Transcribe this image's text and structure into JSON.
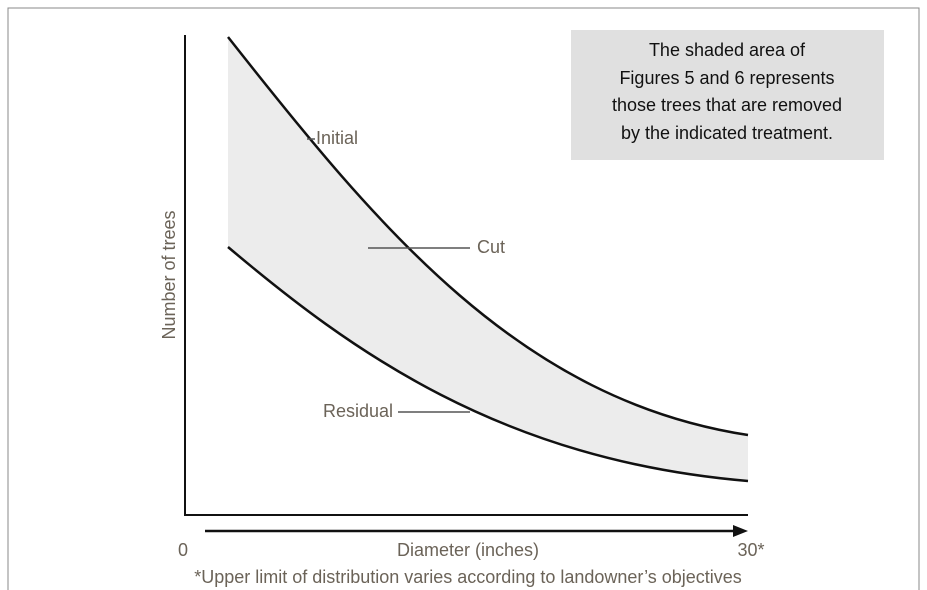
{
  "y_axis_label": "Number of trees",
  "x_axis": {
    "label": "Diameter (inches)",
    "start": "0",
    "end": "30*"
  },
  "footnote": "*Upper limit of distribution varies according to landowner’s objectives",
  "curve_labels": {
    "initial": "Initial",
    "cut": "Cut",
    "residual": "Residual"
  },
  "note": [
    "The shaded area of",
    "Figures 5 and 6 represents",
    "those trees that are removed",
    "by the indicated treatment."
  ]
}
